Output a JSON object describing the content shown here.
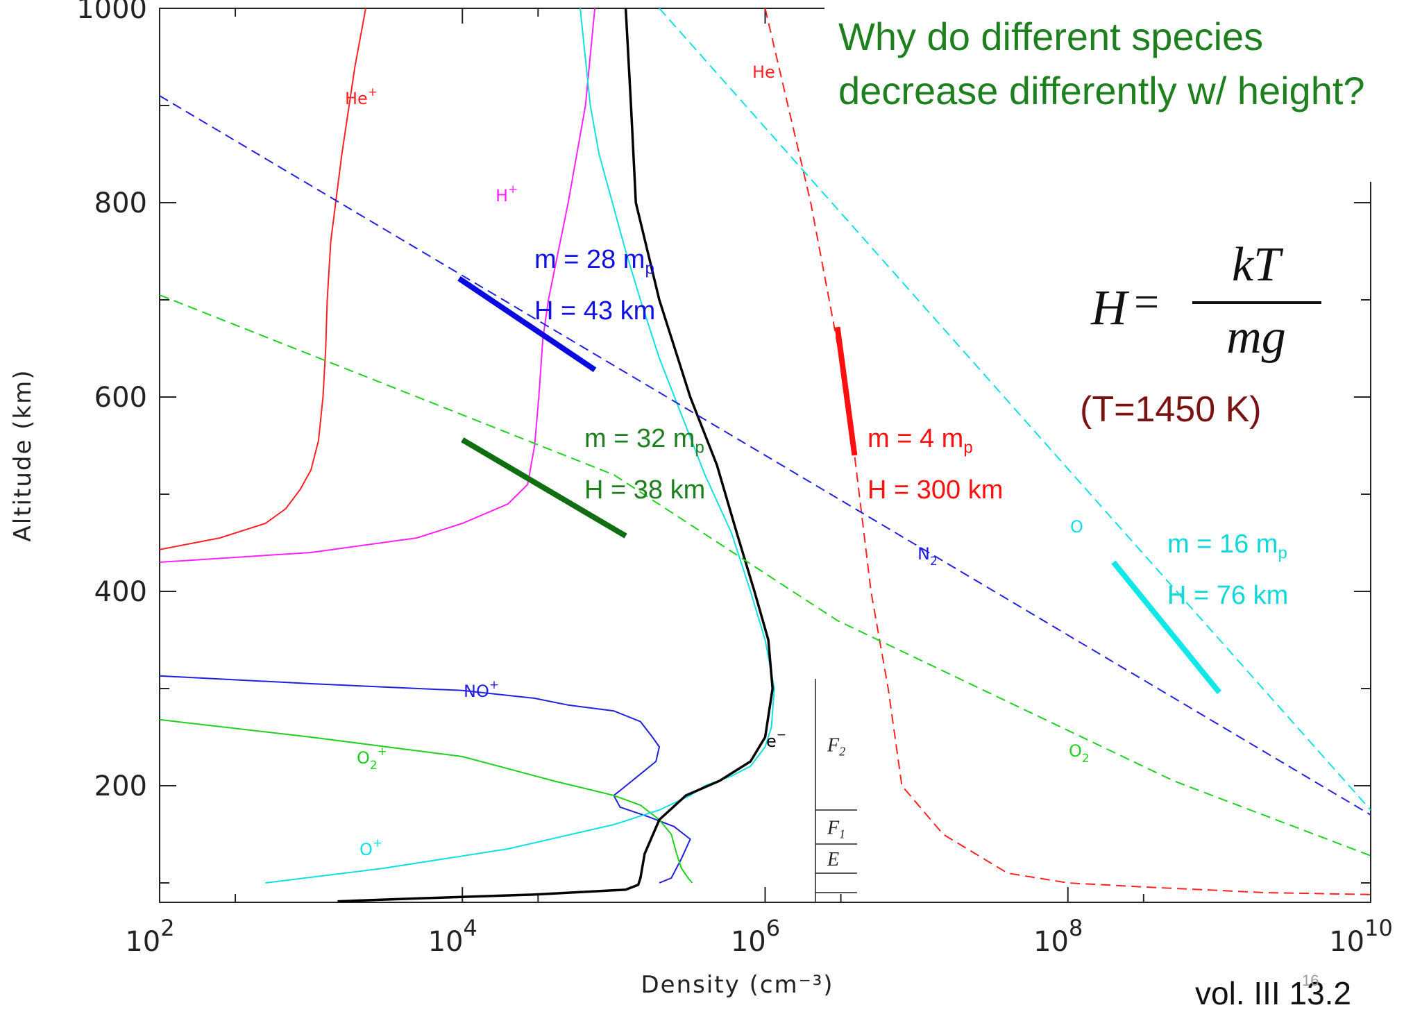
{
  "chart_data": {
    "type": "line",
    "title": "",
    "xlabel": "Density (cm⁻³)",
    "ylabel": "Altitude (km)",
    "x_scale": "log",
    "xlim": [
      100,
      10000000000
    ],
    "ylim": [
      80,
      1000
    ],
    "x_ticks": [
      100,
      10000,
      1000000,
      100000000,
      10000000000
    ],
    "x_tick_labels": [
      {
        "base": "10",
        "exp": "2"
      },
      {
        "base": "10",
        "exp": "4"
      },
      {
        "base": "10",
        "exp": "6"
      },
      {
        "base": "10",
        "exp": "8"
      },
      {
        "base": "10",
        "exp": "10"
      }
    ],
    "y_ticks": [
      200,
      400,
      600,
      800,
      1000
    ],
    "y_tick_labels": [
      "200",
      "400",
      "600",
      "800",
      "1000"
    ],
    "series": [
      {
        "name": "He⁺",
        "key": "heplus",
        "color": "#ff2020",
        "dash": false,
        "label_text": "He",
        "label_sup": "+",
        "points": [
          [
            100,
            443
          ],
          [
            250,
            455
          ],
          [
            500,
            470
          ],
          [
            680,
            485
          ],
          [
            850,
            505
          ],
          [
            1000,
            525
          ],
          [
            1120,
            555
          ],
          [
            1200,
            600
          ],
          [
            1250,
            650
          ],
          [
            1280,
            700
          ],
          [
            1350,
            760
          ],
          [
            1600,
            850
          ],
          [
            1950,
            940
          ],
          [
            2300,
            1000
          ]
        ]
      },
      {
        "name": "H⁺",
        "key": "hplus",
        "color": "#ff20ff",
        "dash": false,
        "label_text": "H",
        "label_sup": "+",
        "points": [
          [
            100,
            430
          ],
          [
            1000,
            440
          ],
          [
            5000,
            455
          ],
          [
            10000,
            470
          ],
          [
            20000,
            490
          ],
          [
            27000,
            510
          ],
          [
            30000,
            550
          ],
          [
            32000,
            600
          ],
          [
            34000,
            660
          ],
          [
            37000,
            700
          ],
          [
            50000,
            800
          ],
          [
            65000,
            900
          ],
          [
            75000,
            1000
          ]
        ]
      },
      {
        "name": "NO⁺",
        "key": "noplus",
        "color": "#2020e0",
        "dash": false,
        "label_text": "NO",
        "label_sup": "+",
        "points": [
          [
            100,
            313
          ],
          [
            1000,
            305
          ],
          [
            10000,
            298
          ],
          [
            30000,
            290
          ],
          [
            50000,
            283
          ],
          [
            100000,
            277
          ],
          [
            150000,
            266
          ],
          [
            180000,
            250
          ],
          [
            200000,
            240
          ],
          [
            190000,
            225
          ],
          [
            150000,
            212
          ],
          [
            110000,
            195
          ],
          [
            100000,
            190
          ],
          [
            110000,
            178
          ],
          [
            170000,
            168
          ],
          [
            250000,
            158
          ],
          [
            320000,
            145
          ],
          [
            280000,
            125
          ],
          [
            240000,
            105
          ],
          [
            200000,
            100
          ]
        ]
      },
      {
        "name": "O₂⁺",
        "key": "o2plus",
        "color": "#20d020",
        "dash": false,
        "label_text": "O",
        "label_sub": "2",
        "label_sup": "+",
        "points": [
          [
            100,
            268
          ],
          [
            1000,
            250
          ],
          [
            10000,
            230
          ],
          [
            40000,
            205
          ],
          [
            100000,
            190
          ],
          [
            150000,
            180
          ],
          [
            200000,
            165
          ],
          [
            240000,
            150
          ],
          [
            260000,
            130
          ],
          [
            280000,
            115
          ],
          [
            310000,
            105
          ],
          [
            330000,
            100
          ]
        ]
      },
      {
        "name": "O⁺",
        "key": "oplus",
        "color": "#10e0e0",
        "dash": false,
        "label_text": "O",
        "label_sup": "+",
        "points": [
          [
            500,
            100
          ],
          [
            3000,
            115
          ],
          [
            20000,
            135
          ],
          [
            100000,
            160
          ],
          [
            200000,
            175
          ],
          [
            320000,
            190
          ],
          [
            400000,
            200
          ],
          [
            600000,
            210
          ],
          [
            800000,
            220
          ],
          [
            1000000,
            240
          ],
          [
            1100000,
            260
          ],
          [
            1150000,
            300
          ],
          [
            1000000,
            350
          ],
          [
            800000,
            400
          ],
          [
            600000,
            460
          ],
          [
            400000,
            520
          ],
          [
            300000,
            570
          ],
          [
            200000,
            640
          ],
          [
            150000,
            700
          ],
          [
            120000,
            750
          ],
          [
            80000,
            850
          ],
          [
            70000,
            900
          ],
          [
            60000,
            1000
          ]
        ]
      },
      {
        "name": "e⁻",
        "key": "electron",
        "color": "#000000",
        "dash": false,
        "label_text": "e",
        "label_sup": "−",
        "points": [
          [
            1500,
            81
          ],
          [
            5000,
            84
          ],
          [
            30000,
            88
          ],
          [
            120000,
            93
          ],
          [
            145000,
            98
          ],
          [
            150000,
            105
          ],
          [
            160000,
            130
          ],
          [
            200000,
            165
          ],
          [
            300000,
            190
          ],
          [
            500000,
            205
          ],
          [
            800000,
            225
          ],
          [
            1000000,
            250
          ],
          [
            1120000,
            300
          ],
          [
            1050000,
            350
          ],
          [
            850000,
            400
          ],
          [
            650000,
            460
          ],
          [
            480000,
            530
          ],
          [
            320000,
            600
          ],
          [
            200000,
            700
          ],
          [
            140000,
            800
          ],
          [
            130000,
            900
          ],
          [
            120000,
            1000
          ]
        ]
      },
      {
        "name": "He",
        "key": "he",
        "color": "#ff2020",
        "dash": true,
        "label_text": "He",
        "points": [
          [
            1000000,
            1000
          ],
          [
            2000000,
            800
          ],
          [
            3500000,
            600
          ],
          [
            5000000,
            400
          ],
          [
            6500000,
            300
          ],
          [
            8000000,
            200
          ],
          [
            15000000,
            150
          ],
          [
            40000000,
            110
          ],
          [
            100000000,
            100
          ],
          [
            300000000,
            96
          ],
          [
            2000000000,
            90
          ],
          [
            10000000000,
            88
          ]
        ]
      },
      {
        "name": "O",
        "key": "o",
        "color": "#10e0e0",
        "dash": true,
        "label_text": "O",
        "points": [
          [
            200000,
            1000
          ],
          [
            10000000000,
            175
          ]
        ]
      },
      {
        "name": "N₂",
        "key": "n2",
        "color": "#2020e0",
        "dash": true,
        "label_text": "N",
        "label_sub": "2",
        "points": [
          [
            100,
            910
          ],
          [
            10000000000,
            170
          ]
        ]
      },
      {
        "name": "O₂",
        "key": "o2",
        "color": "#20d020",
        "dash": true,
        "label_text": "O",
        "label_sub": "2",
        "points": [
          [
            100,
            705
          ],
          [
            100000,
            520
          ],
          [
            3000000,
            370
          ],
          [
            500000000,
            205
          ],
          [
            10000000000,
            128
          ]
        ]
      }
    ],
    "layer_labels": [
      {
        "text": "F",
        "sub": "2"
      },
      {
        "text": "F",
        "sub": "1"
      },
      {
        "text": "E",
        "sub": ""
      }
    ],
    "layer_bounds_km": [
      310,
      175,
      140,
      110,
      90
    ],
    "scale_height_segments": [
      {
        "key": "n2fit",
        "color": "#0a0ae0",
        "points": [
          [
            9500,
            722
          ],
          [
            75000,
            628
          ]
        ]
      },
      {
        "key": "o2fit",
        "color": "#0f6e0f",
        "points": [
          [
            10000,
            556
          ],
          [
            120000,
            457
          ]
        ]
      },
      {
        "key": "hefit",
        "color": "#ff1010",
        "points": [
          [
            3000000,
            672
          ],
          [
            3900000,
            540
          ]
        ]
      },
      {
        "key": "ofit",
        "color": "#10e8e8",
        "points": [
          [
            200000000,
            430
          ],
          [
            1000000000,
            296
          ]
        ]
      }
    ]
  },
  "question": "Why do different species decrease differently  w/ height?",
  "annotations": {
    "n2": {
      "m_label": "m = 28 m",
      "m_sub": "p",
      "h_label": "H = 43 km",
      "color": "#1010e0"
    },
    "o2": {
      "m_label": "m = 32 m",
      "m_sub": "p",
      "h_label": "H = 38 km",
      "color": "#1e7f1e"
    },
    "he": {
      "m_label": "m = 4 m",
      "m_sub": "p",
      "h_label": "H = 300 km",
      "color": "#ff1010"
    },
    "o": {
      "m_label": "m = 16 m",
      "m_sub": "p",
      "h_label": "H = 76 km",
      "color": "#10d8d8"
    }
  },
  "formula": {
    "lhs": "H",
    "eq": "=",
    "numerator": "kT",
    "denominator": "mg"
  },
  "temperature": "(T=1450 K)",
  "reference": "vol. III 13.2",
  "page_number": "16"
}
